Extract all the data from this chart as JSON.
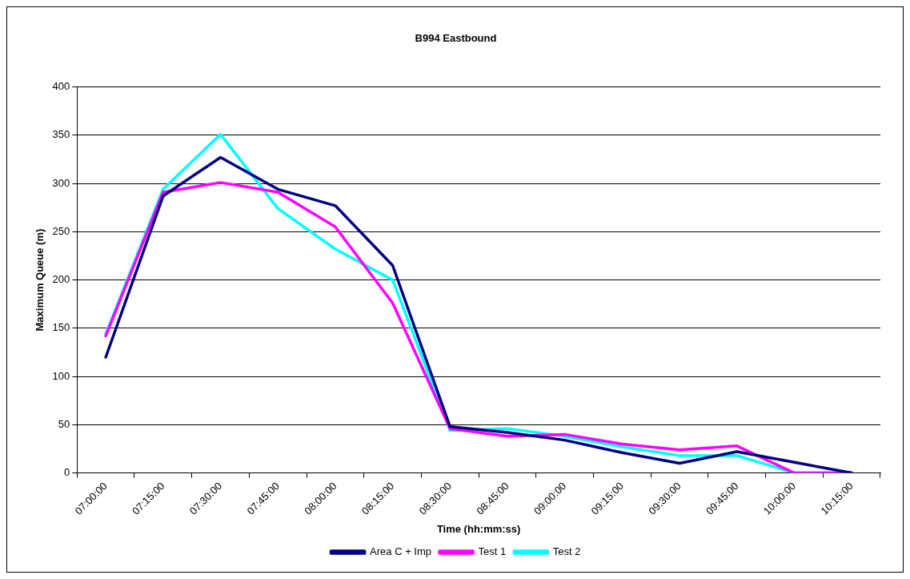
{
  "chart_data": {
    "type": "line",
    "title": "B994 Eastbound",
    "xlabel": "Time (hh:mm:ss)",
    "ylabel": "Maximum Queue (m)",
    "categories": [
      "07:00:00",
      "07:15:00",
      "07:30:00",
      "07:45:00",
      "08:00:00",
      "08:15:00",
      "08:30:00",
      "08:45:00",
      "09:00:00",
      "09:15:00",
      "09:30:00",
      "09:45:00",
      "10:00:00",
      "10:15:00"
    ],
    "series": [
      {
        "name": "Area C + Imp",
        "color": "#000080",
        "values": [
          120,
          287,
          327,
          294,
          277,
          215,
          48,
          42,
          34,
          21,
          10,
          22,
          11,
          0
        ]
      },
      {
        "name": "Test 1",
        "color": "#ff00ff",
        "values": [
          142,
          291,
          301,
          291,
          255,
          176,
          46,
          38,
          40,
          30,
          24,
          28,
          0,
          0
        ]
      },
      {
        "name": "Test 2",
        "color": "#00ffff",
        "values": [
          144,
          294,
          351,
          274,
          232,
          200,
          44,
          46,
          38,
          27,
          18,
          18,
          0,
          0
        ]
      }
    ],
    "ylim": [
      0,
      400
    ],
    "yticks": [
      0,
      50,
      100,
      150,
      200,
      250,
      300,
      350,
      400
    ],
    "grid": "y",
    "legend": "bottom",
    "marker": "none",
    "line_style": "solid"
  }
}
